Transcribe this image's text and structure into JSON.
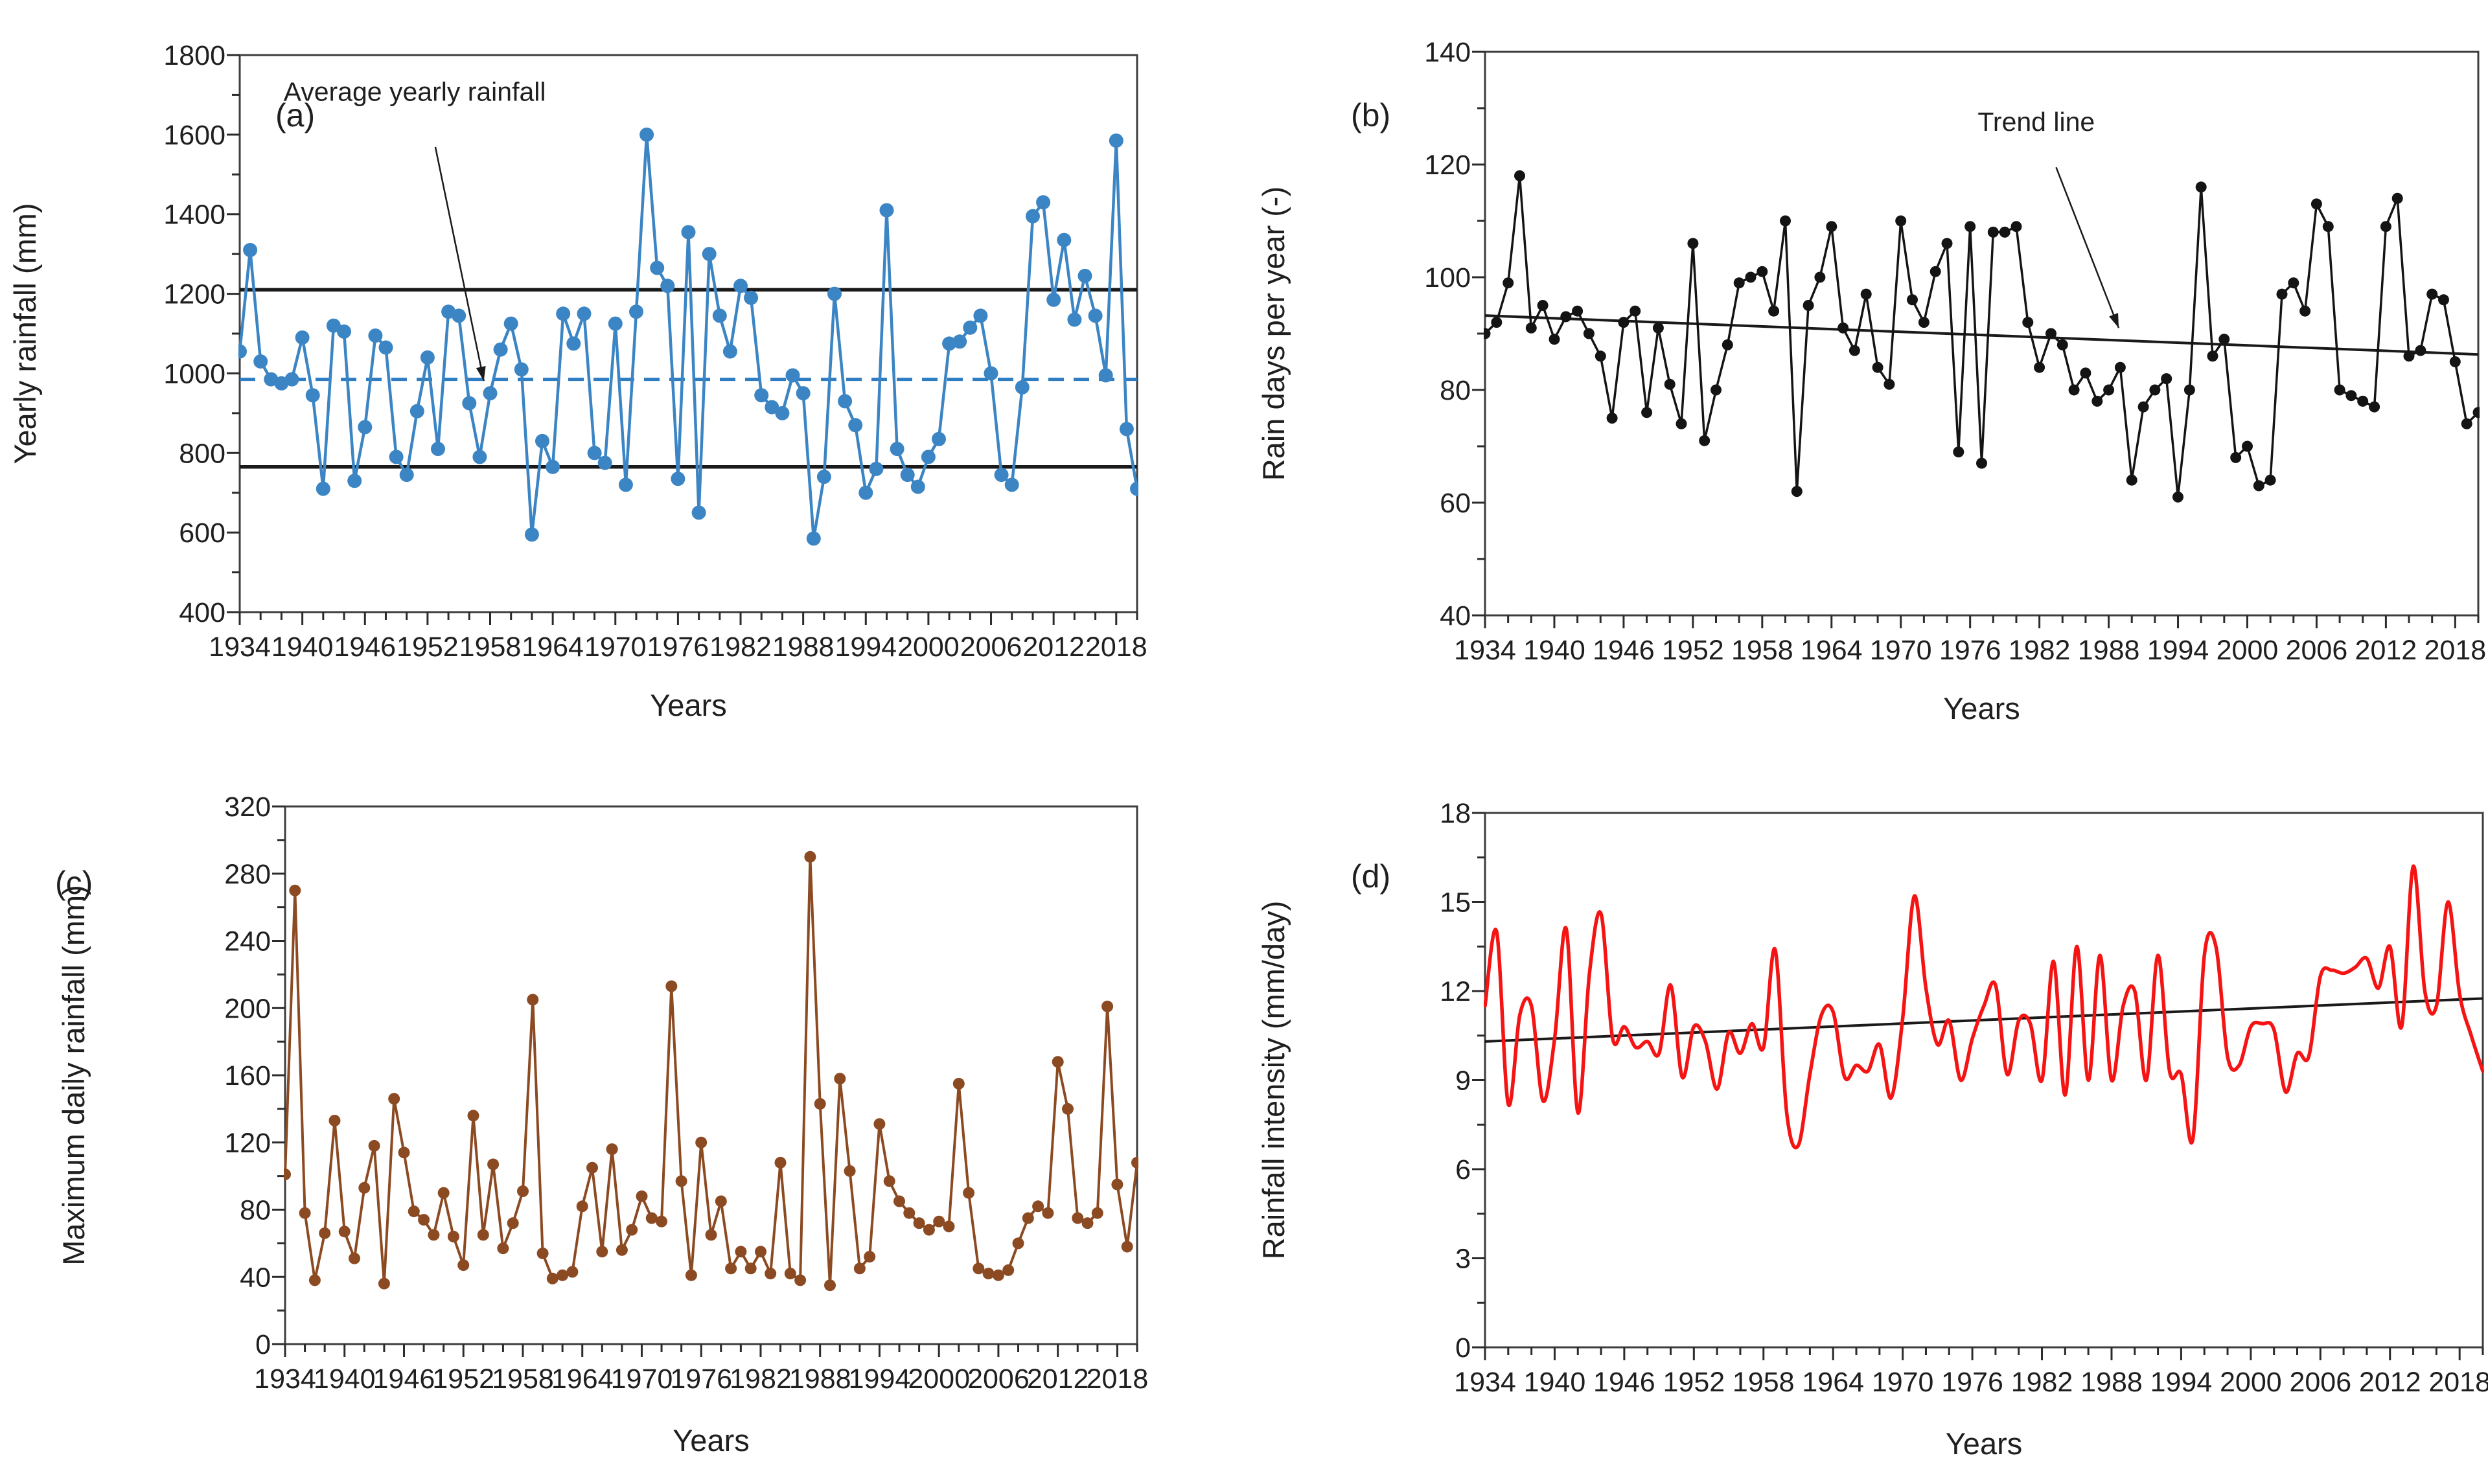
{
  "chart_data": [
    {
      "type": "line",
      "panel_label": "(a)",
      "xlabel": "Years",
      "ylabel": "Yearly rainfall (mm)",
      "ylim": [
        400,
        1800
      ],
      "yticks": [
        400,
        600,
        800,
        1000,
        1200,
        1400,
        1600,
        1800
      ],
      "ytick_minor_step": 100,
      "x_start": 1934,
      "x_end": 2020,
      "xticks": [
        1934,
        1940,
        1946,
        1952,
        1958,
        1964,
        1970,
        1976,
        1982,
        1988,
        1994,
        2000,
        2006,
        2012,
        2018
      ],
      "xtick_minor_step": 2,
      "series_color": "#3c85c4",
      "marker": true,
      "smooth": false,
      "values": [
        1055,
        1310,
        1030,
        985,
        975,
        985,
        1090,
        945,
        710,
        1120,
        1105,
        730,
        865,
        1095,
        1065,
        790,
        745,
        905,
        1040,
        810,
        1155,
        1145,
        925,
        790,
        950,
        1060,
        1125,
        1010,
        595,
        830,
        765,
        1150,
        1075,
        1150,
        800,
        775,
        1125,
        720,
        1155,
        1600,
        1265,
        1220,
        735,
        1355,
        650,
        1300,
        1145,
        1055,
        1220,
        1190,
        945,
        915,
        900,
        995,
        950,
        585,
        740,
        1200,
        930,
        870,
        700,
        760,
        1410,
        810,
        745,
        715,
        790,
        835,
        1075,
        1080,
        1115,
        1145,
        1000,
        745,
        720,
        965,
        1395,
        1430,
        1185,
        1335,
        1135,
        1245,
        1145,
        995,
        1585,
        860,
        710
      ],
      "ref_lines": [
        {
          "name": "upper-band",
          "value": 1210,
          "style": "solid",
          "color": "#1a1a1a"
        },
        {
          "name": "average-yearly-rainfall",
          "value": 985,
          "style": "dashed",
          "color": "#2e7dc2"
        },
        {
          "name": "lower-band",
          "value": 765,
          "style": "solid",
          "color": "#1a1a1a"
        }
      ],
      "annotation": {
        "text": "Average yearly rainfall"
      }
    },
    {
      "type": "line",
      "panel_label": "(b)",
      "xlabel": "Years",
      "ylabel": "Rain days per year (-)",
      "ylim": [
        40,
        140
      ],
      "yticks": [
        40,
        60,
        80,
        100,
        120,
        140
      ],
      "ytick_minor_step": 10,
      "x_start": 1934,
      "x_end": 2020,
      "xticks": [
        1934,
        1940,
        1946,
        1952,
        1958,
        1964,
        1970,
        1976,
        1982,
        1988,
        1994,
        2000,
        2006,
        2012,
        2018
      ],
      "xtick_minor_step": 2,
      "series_color": "#141414",
      "marker": true,
      "smooth": false,
      "values": [
        90,
        92,
        99,
        118,
        91,
        95,
        89,
        93,
        94,
        90,
        86,
        75,
        92,
        94,
        76,
        91,
        81,
        74,
        106,
        71,
        80,
        88,
        99,
        100,
        101,
        94,
        110,
        62,
        95,
        100,
        109,
        91,
        87,
        97,
        84,
        81,
        110,
        96,
        92,
        101,
        106,
        69,
        109,
        67,
        108,
        108,
        109,
        92,
        84,
        90,
        88,
        80,
        83,
        78,
        80,
        84,
        64,
        77,
        80,
        82,
        61,
        80,
        116,
        86,
        89,
        68,
        70,
        63,
        64,
        97,
        99,
        94,
        113,
        109,
        80,
        79,
        78,
        77,
        109,
        114,
        86,
        87,
        97,
        96,
        85,
        74,
        76
      ],
      "trend_line": {
        "start_value": 93.2,
        "end_value": 86.3,
        "color": "#1a1a1a"
      },
      "annotation": {
        "text": "Trend line"
      }
    },
    {
      "type": "line",
      "panel_label": "(c)",
      "xlabel": "Years",
      "ylabel": "Maximum daily rainfall (mm)",
      "ylim": [
        0,
        320
      ],
      "yticks": [
        0,
        40,
        80,
        120,
        160,
        200,
        240,
        280,
        320
      ],
      "ytick_minor_step": 20,
      "x_start": 1934,
      "x_end": 2020,
      "xticks": [
        1934,
        1940,
        1946,
        1952,
        1958,
        1964,
        1970,
        1976,
        1982,
        1988,
        1994,
        2000,
        2006,
        2012,
        2018
      ],
      "xtick_minor_step": 2,
      "series_color": "#8c4a22",
      "marker": true,
      "smooth": false,
      "values": [
        101,
        270,
        78,
        38,
        66,
        133,
        67,
        51,
        93,
        118,
        36,
        146,
        114,
        79,
        74,
        65,
        90,
        64,
        47,
        136,
        65,
        107,
        57,
        72,
        91,
        205,
        54,
        39,
        41,
        43,
        82,
        105,
        55,
        116,
        56,
        68,
        88,
        75,
        73,
        213,
        97,
        41,
        120,
        65,
        85,
        45,
        55,
        45,
        55,
        42,
        108,
        42,
        38,
        290,
        143,
        35,
        158,
        103,
        45,
        52,
        131,
        97,
        85,
        78,
        72,
        68,
        73,
        70,
        155,
        90,
        45,
        42,
        41,
        44,
        60,
        75,
        82,
        78,
        168,
        140,
        75,
        72,
        78,
        201,
        95,
        58,
        108
      ],
      "annotation": null
    },
    {
      "type": "line",
      "panel_label": "(d)",
      "xlabel": "Years",
      "ylabel": "Rainfall intensity (mm/day)",
      "ylim": [
        0,
        18
      ],
      "yticks": [
        0,
        3,
        6,
        9,
        12,
        15,
        18
      ],
      "ytick_minor_step": 1.5,
      "x_start": 1934,
      "x_end": 2020,
      "xticks": [
        1934,
        1940,
        1946,
        1952,
        1958,
        1964,
        1970,
        1976,
        1982,
        1988,
        1994,
        2000,
        2006,
        2012,
        2018
      ],
      "xtick_minor_step": 2,
      "series_color": "#f51414",
      "marker": false,
      "smooth": true,
      "values": [
        11.5,
        14.0,
        8.2,
        11.2,
        11.5,
        8.3,
        10.4,
        14.1,
        7.9,
        12.6,
        14.6,
        10.4,
        10.8,
        10.1,
        10.3,
        9.9,
        12.2,
        9.1,
        10.8,
        10.3,
        8.7,
        10.6,
        9.9,
        10.9,
        10.1,
        13.4,
        7.9,
        6.8,
        9.2,
        11.2,
        11.3,
        9.1,
        9.5,
        9.3,
        10.2,
        8.4,
        11.1,
        15.2,
        12.1,
        10.2,
        11.0,
        9.0,
        10.4,
        11.5,
        12.2,
        9.2,
        11.0,
        10.9,
        9.0,
        13.0,
        8.5,
        13.5,
        9.0,
        13.2,
        9.0,
        11.5,
        12.0,
        9.0,
        13.2,
        9.3,
        9.2,
        7.0,
        13.2,
        13.5,
        9.8,
        9.5,
        10.8,
        10.9,
        10.7,
        8.6,
        9.9,
        9.8,
        12.5,
        12.7,
        12.6,
        12.8,
        13.1,
        12.1,
        13.5,
        10.8,
        16.2,
        12.0,
        11.5,
        15.0,
        11.9,
        10.5,
        9.3
      ],
      "trend_line": {
        "start_value": 10.3,
        "end_value": 11.75,
        "color": "#1a1a1a"
      },
      "annotation": null
    }
  ]
}
